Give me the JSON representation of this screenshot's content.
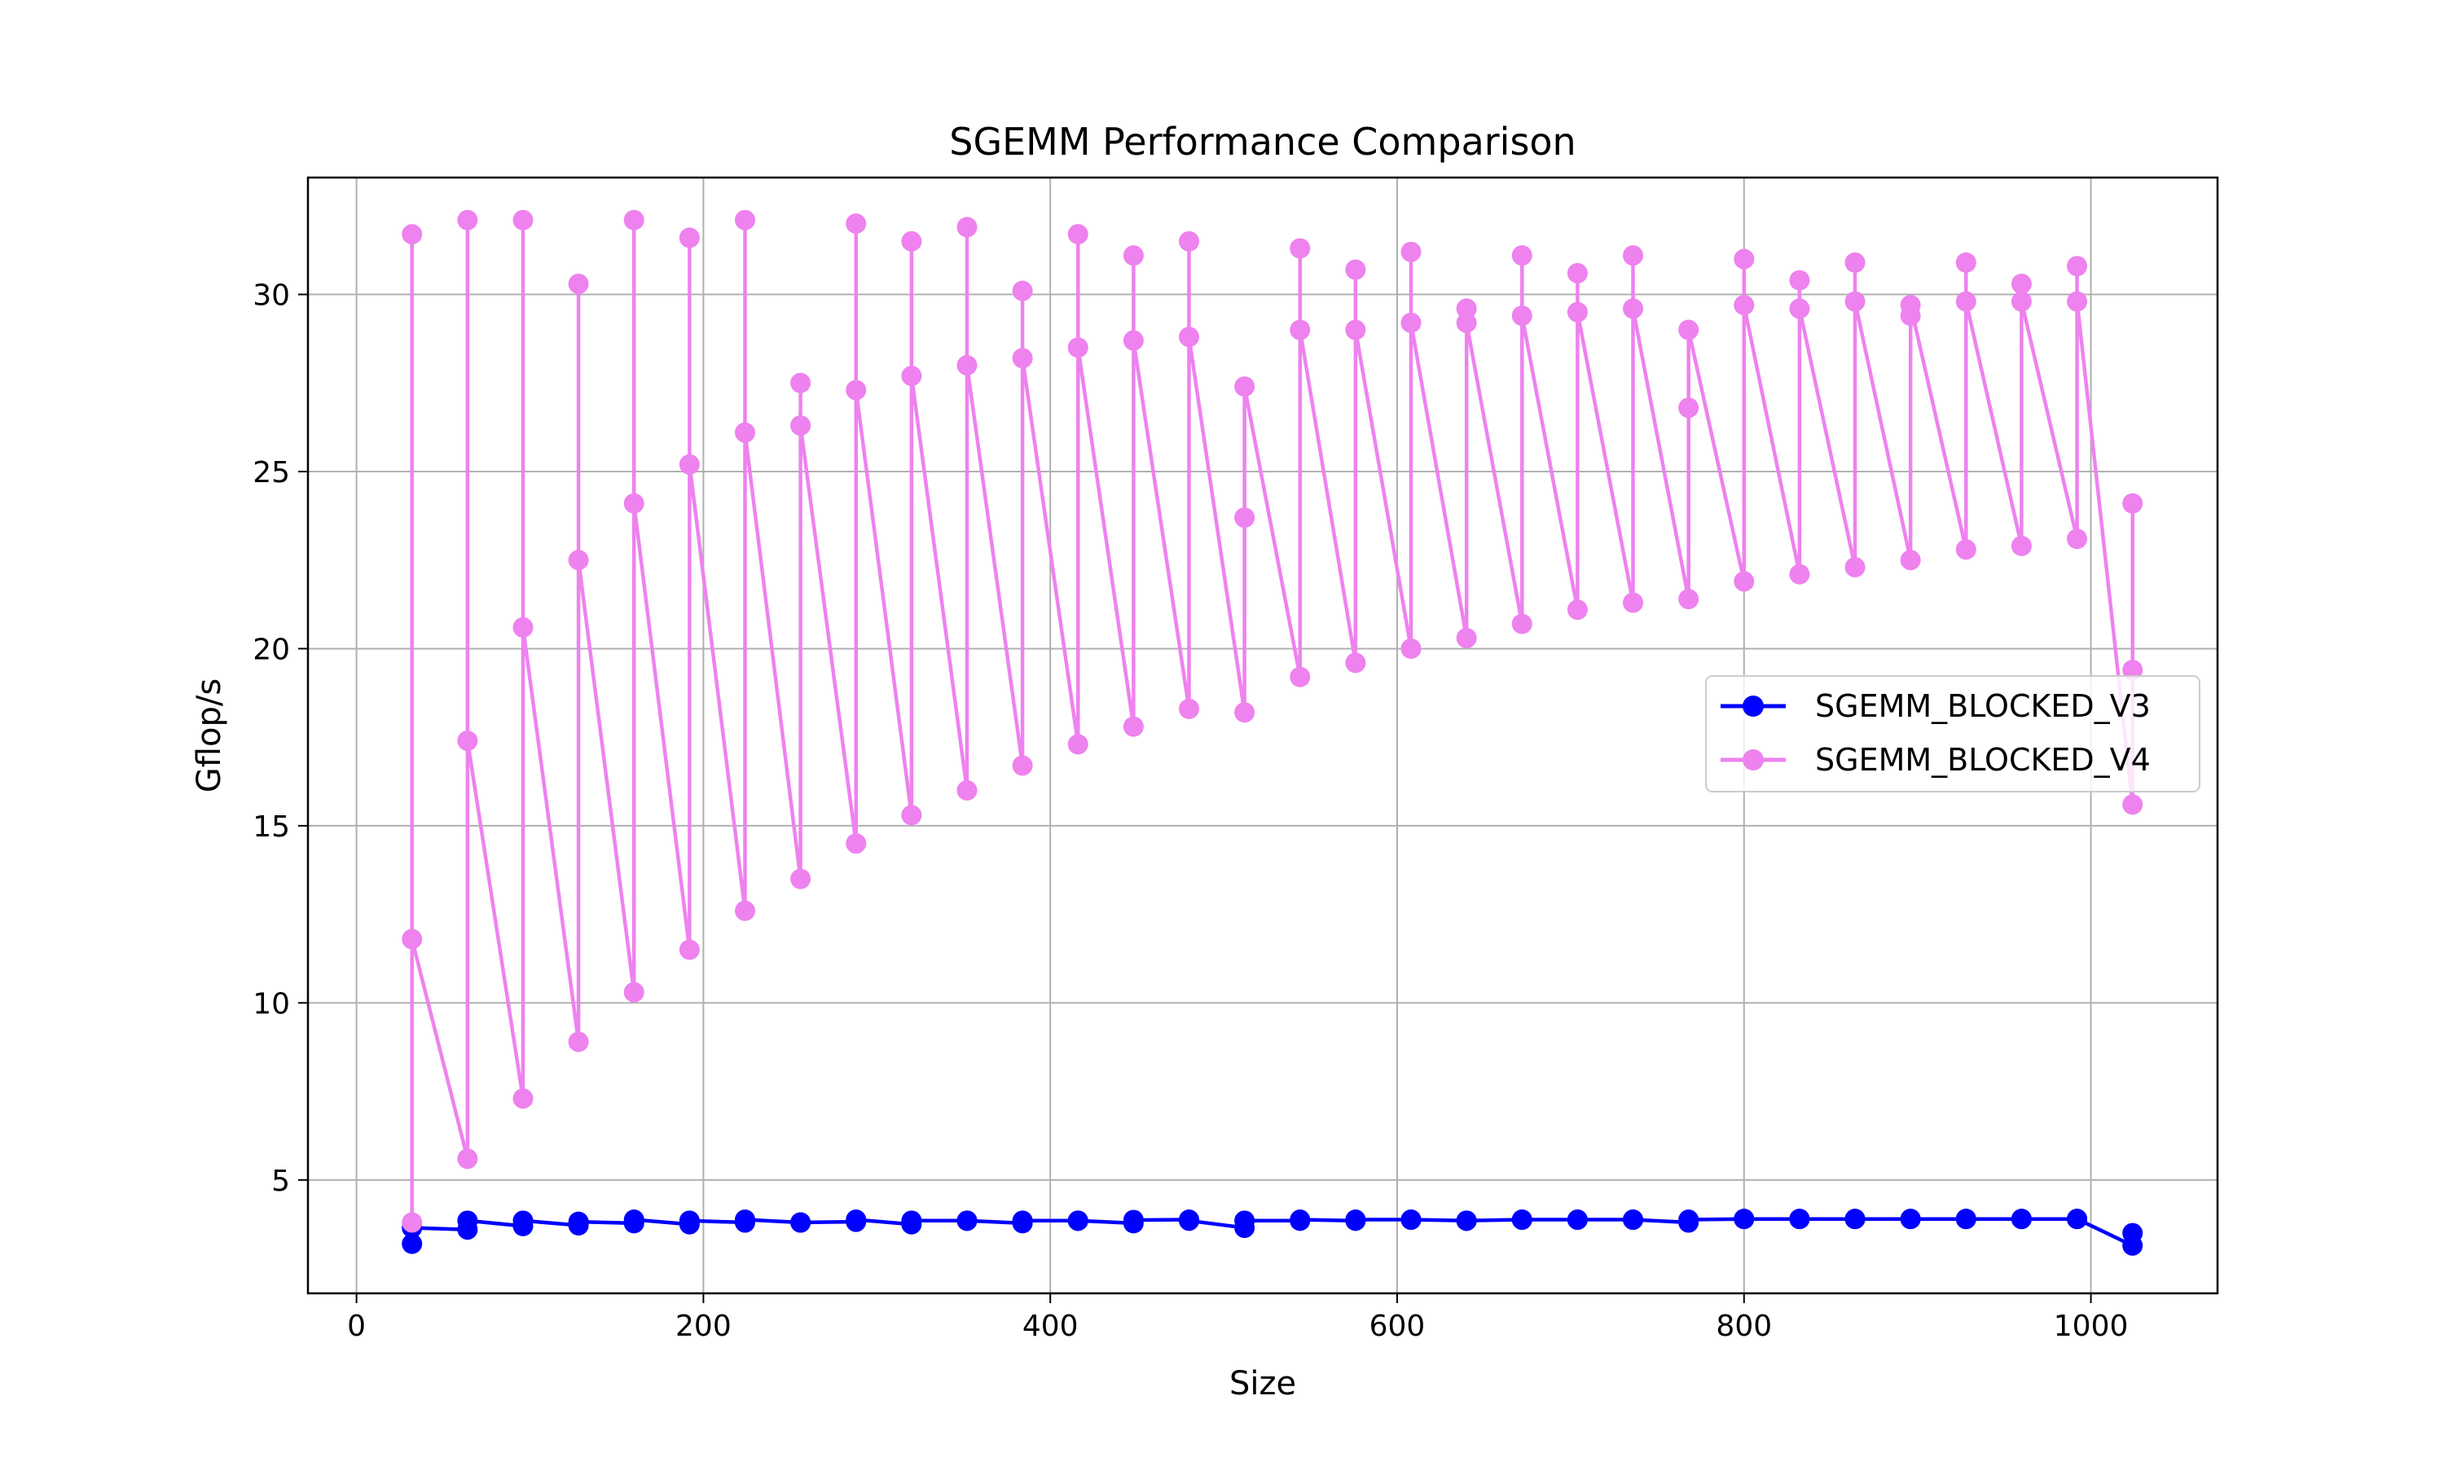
{
  "chart_data": {
    "type": "line",
    "title": "SGEMM Performance Comparison",
    "xlabel": "Size",
    "ylabel": "Gflop/s",
    "xlim": [
      -28,
      1073
    ],
    "ylim": [
      1.8,
      33.3
    ],
    "xticks": [
      0,
      200,
      400,
      600,
      800,
      1000
    ],
    "yticks": [
      5,
      10,
      15,
      20,
      25,
      30
    ],
    "grid": true,
    "legend_position": "center-right",
    "series": [
      {
        "name": "SGEMM_BLOCKED_V3",
        "color": "#0000ff",
        "points": [
          [
            32,
            3.2
          ],
          [
            32,
            3.65
          ],
          [
            64,
            3.6
          ],
          [
            64,
            3.85
          ],
          [
            96,
            3.7
          ],
          [
            96,
            3.85
          ],
          [
            128,
            3.72
          ],
          [
            128,
            3.82
          ],
          [
            160,
            3.78
          ],
          [
            160,
            3.88
          ],
          [
            192,
            3.75
          ],
          [
            192,
            3.85
          ],
          [
            224,
            3.8
          ],
          [
            224,
            3.88
          ],
          [
            256,
            3.8
          ],
          [
            256,
            3.8
          ],
          [
            288,
            3.82
          ],
          [
            288,
            3.88
          ],
          [
            320,
            3.75
          ],
          [
            320,
            3.85
          ],
          [
            352,
            3.85
          ],
          [
            352,
            3.85
          ],
          [
            384,
            3.78
          ],
          [
            384,
            3.85
          ],
          [
            416,
            3.85
          ],
          [
            416,
            3.85
          ],
          [
            448,
            3.78
          ],
          [
            448,
            3.87
          ],
          [
            480,
            3.88
          ],
          [
            480,
            3.85
          ],
          [
            512,
            3.65
          ],
          [
            512,
            3.85
          ],
          [
            544,
            3.85
          ],
          [
            544,
            3.88
          ],
          [
            576,
            3.85
          ],
          [
            576,
            3.88
          ],
          [
            608,
            3.88
          ],
          [
            608,
            3.88
          ],
          [
            640,
            3.85
          ],
          [
            640,
            3.85
          ],
          [
            672,
            3.88
          ],
          [
            672,
            3.88
          ],
          [
            704,
            3.88
          ],
          [
            704,
            3.88
          ],
          [
            736,
            3.88
          ],
          [
            736,
            3.88
          ],
          [
            768,
            3.8
          ],
          [
            768,
            3.88
          ],
          [
            800,
            3.9
          ],
          [
            800,
            3.9
          ],
          [
            832,
            3.9
          ],
          [
            832,
            3.9
          ],
          [
            864,
            3.9
          ],
          [
            864,
            3.9
          ],
          [
            896,
            3.9
          ],
          [
            896,
            3.9
          ],
          [
            928,
            3.9
          ],
          [
            928,
            3.9
          ],
          [
            960,
            3.9
          ],
          [
            960,
            3.9
          ],
          [
            992,
            3.9
          ],
          [
            992,
            3.9
          ],
          [
            1024,
            3.15
          ],
          [
            1024,
            3.5
          ]
        ]
      },
      {
        "name": "SGEMM_BLOCKED_V4",
        "color": "#ee82ee",
        "points": [
          [
            32,
            3.8
          ],
          [
            32,
            31.7
          ],
          [
            32,
            11.8
          ],
          [
            64,
            5.6
          ],
          [
            64,
            32.1
          ],
          [
            64,
            17.4
          ],
          [
            96,
            7.3
          ],
          [
            96,
            32.1
          ],
          [
            96,
            20.6
          ],
          [
            128,
            8.9
          ],
          [
            128,
            30.3
          ],
          [
            128,
            22.5
          ],
          [
            160,
            10.3
          ],
          [
            160,
            32.1
          ],
          [
            160,
            24.1
          ],
          [
            192,
            11.5
          ],
          [
            192,
            31.6
          ],
          [
            192,
            25.2
          ],
          [
            224,
            12.6
          ],
          [
            224,
            32.1
          ],
          [
            224,
            26.1
          ],
          [
            256,
            13.5
          ],
          [
            256,
            27.5
          ],
          [
            256,
            26.3
          ],
          [
            288,
            14.5
          ],
          [
            288,
            32.0
          ],
          [
            288,
            27.3
          ],
          [
            320,
            15.3
          ],
          [
            320,
            31.5
          ],
          [
            320,
            27.7
          ],
          [
            352,
            16.0
          ],
          [
            352,
            31.9
          ],
          [
            352,
            28.0
          ],
          [
            384,
            16.7
          ],
          [
            384,
            30.1
          ],
          [
            384,
            28.2
          ],
          [
            416,
            17.3
          ],
          [
            416,
            31.7
          ],
          [
            416,
            28.5
          ],
          [
            448,
            17.8
          ],
          [
            448,
            31.1
          ],
          [
            448,
            28.7
          ],
          [
            480,
            18.3
          ],
          [
            480,
            31.5
          ],
          [
            480,
            28.8
          ],
          [
            512,
            18.2
          ],
          [
            512,
            23.7
          ],
          [
            512,
            27.4
          ],
          [
            544,
            19.2
          ],
          [
            544,
            31.3
          ],
          [
            544,
            29.0
          ],
          [
            576,
            19.6
          ],
          [
            576,
            30.7
          ],
          [
            576,
            29.0
          ],
          [
            608,
            20.0
          ],
          [
            608,
            31.2
          ],
          [
            608,
            29.2
          ],
          [
            640,
            20.3
          ],
          [
            640,
            29.6
          ],
          [
            640,
            29.2
          ],
          [
            672,
            20.7
          ],
          [
            672,
            31.1
          ],
          [
            672,
            29.4
          ],
          [
            704,
            21.1
          ],
          [
            704,
            30.6
          ],
          [
            704,
            29.5
          ],
          [
            736,
            21.3
          ],
          [
            736,
            31.1
          ],
          [
            736,
            29.6
          ],
          [
            768,
            21.4
          ],
          [
            768,
            26.8
          ],
          [
            768,
            29.0
          ],
          [
            800,
            21.9
          ],
          [
            800,
            31.0
          ],
          [
            800,
            29.7
          ],
          [
            832,
            22.1
          ],
          [
            832,
            30.4
          ],
          [
            832,
            29.6
          ],
          [
            864,
            22.3
          ],
          [
            864,
            30.9
          ],
          [
            864,
            29.8
          ],
          [
            896,
            22.5
          ],
          [
            896,
            29.4
          ],
          [
            896,
            29.7
          ],
          [
            928,
            22.8
          ],
          [
            928,
            30.9
          ],
          [
            928,
            29.8
          ],
          [
            960,
            22.9
          ],
          [
            960,
            30.3
          ],
          [
            960,
            29.8
          ],
          [
            992,
            23.1
          ],
          [
            992,
            30.8
          ],
          [
            992,
            29.8
          ],
          [
            1024,
            15.6
          ],
          [
            1024,
            24.1
          ],
          [
            1024,
            19.4
          ]
        ]
      }
    ]
  }
}
